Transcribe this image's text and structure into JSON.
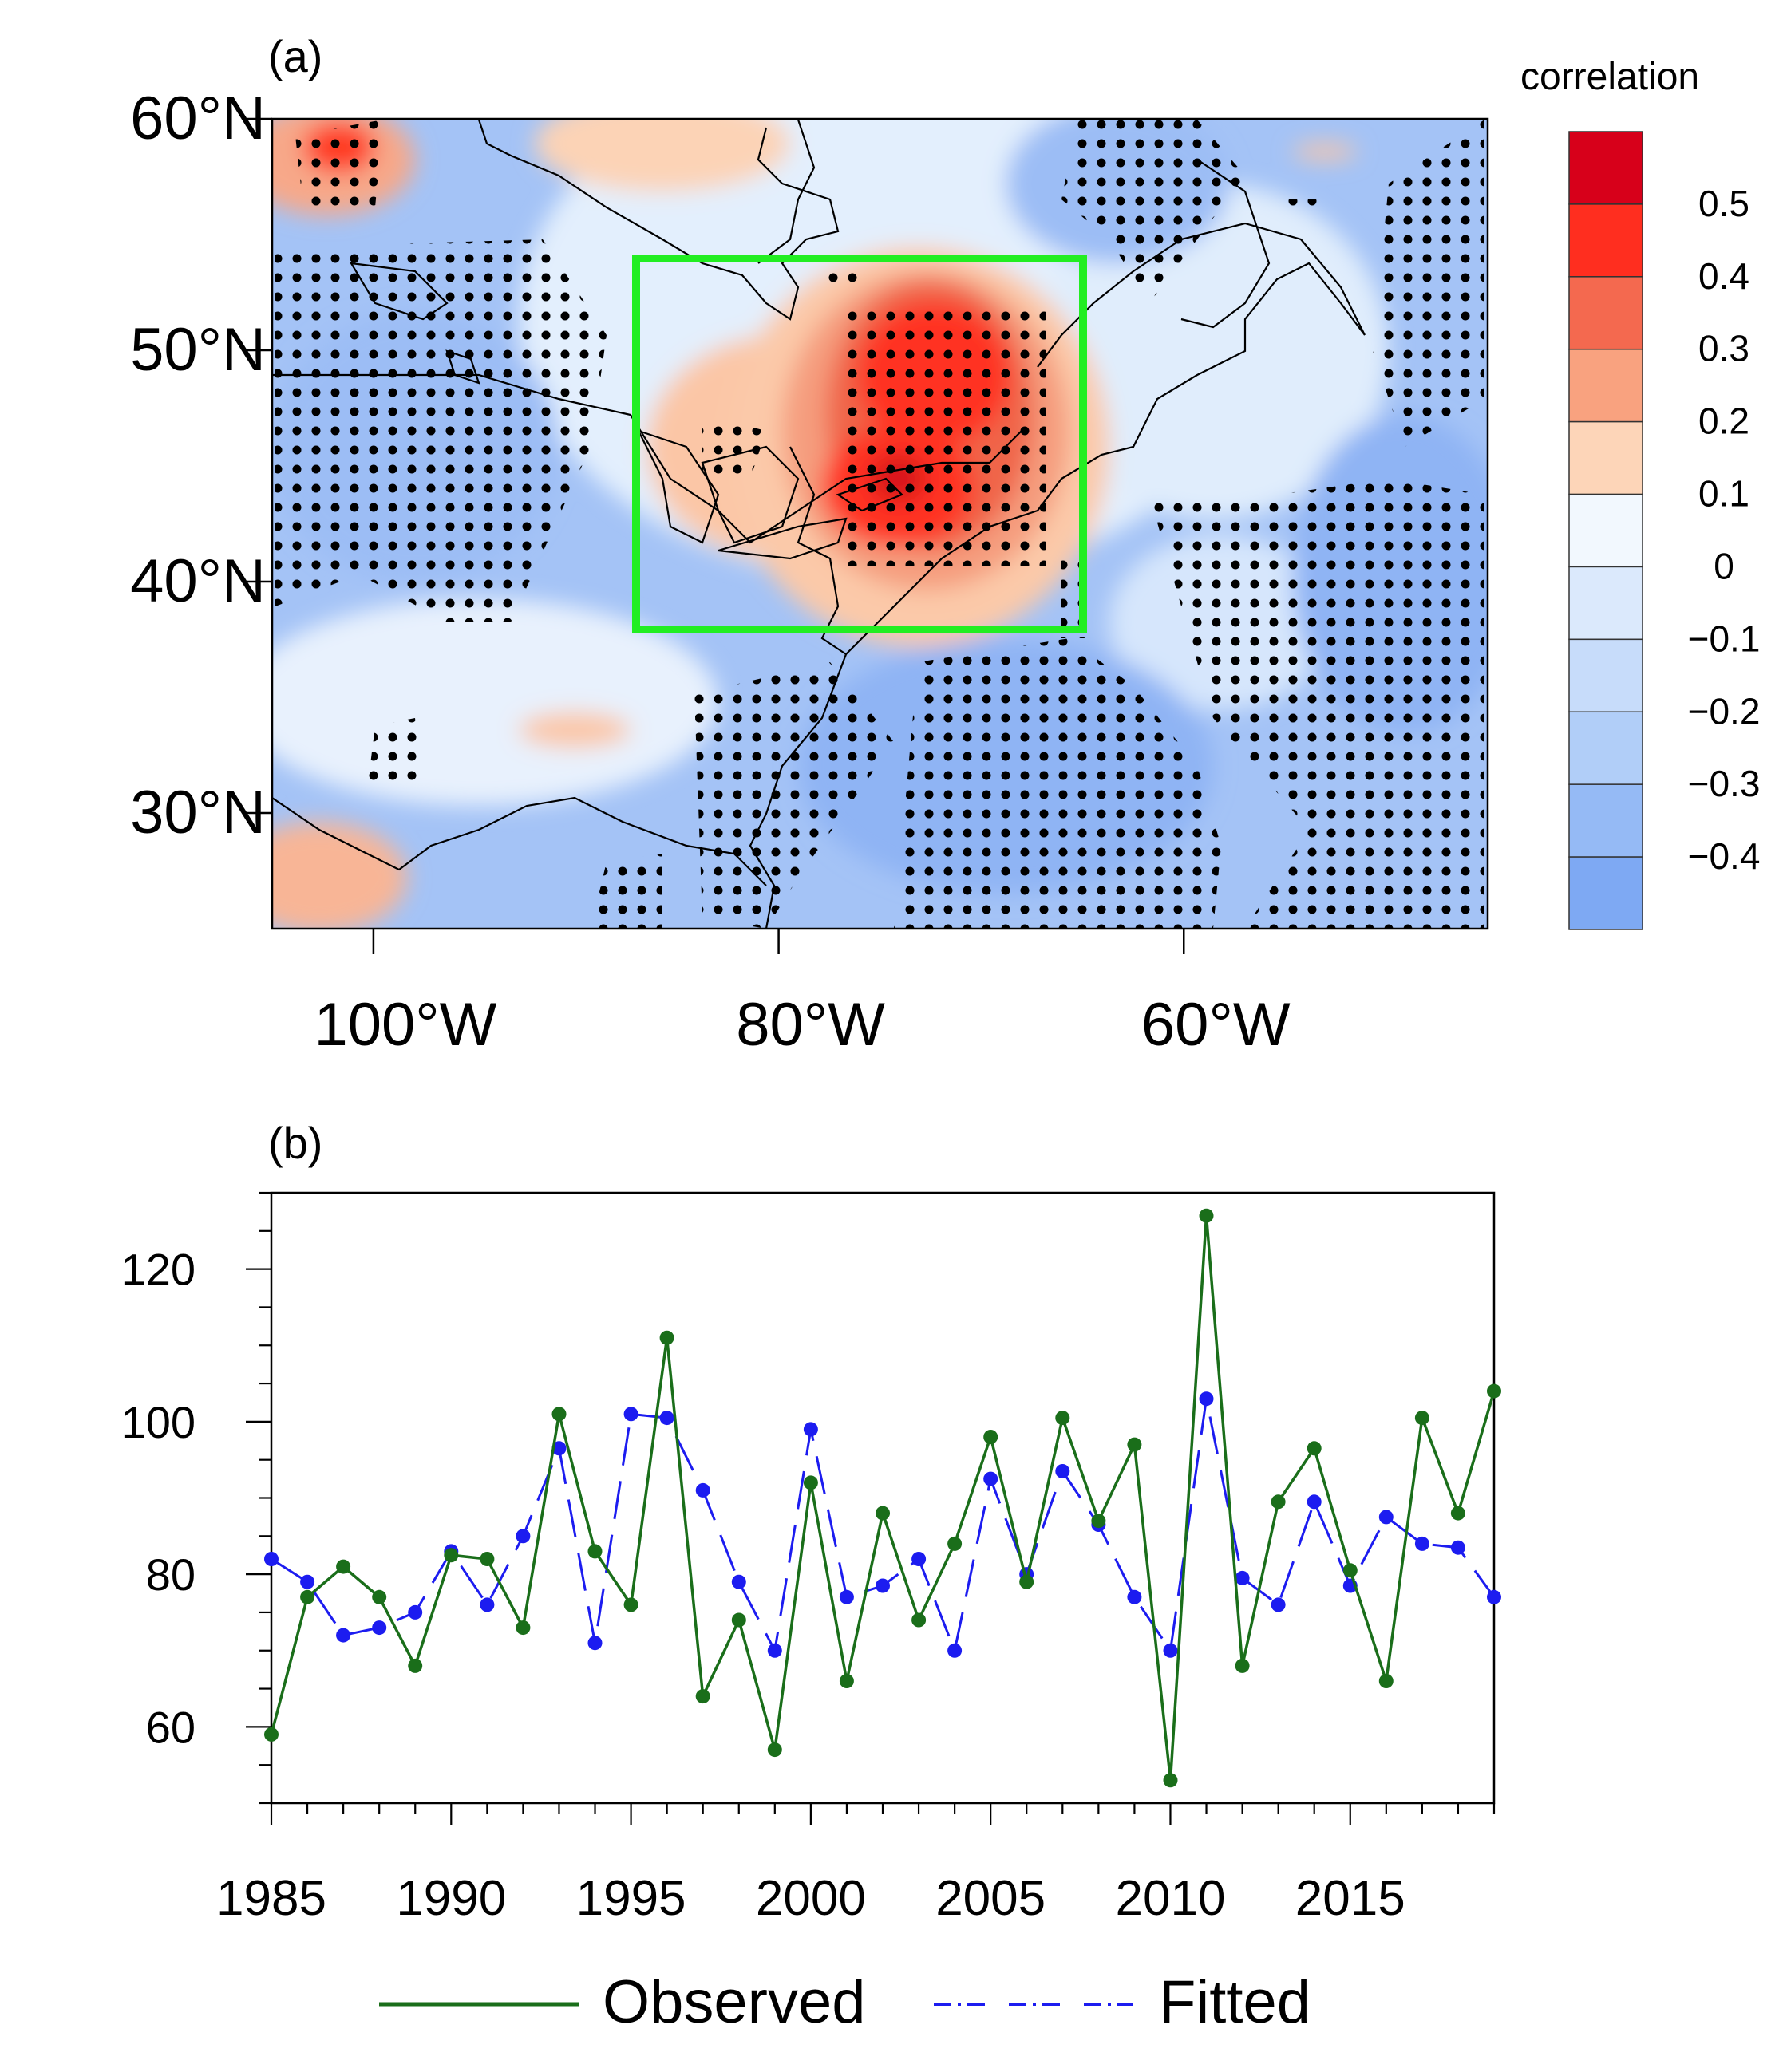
{
  "panels": {
    "a": {
      "label": "(a)"
    },
    "b": {
      "label": "(b)"
    }
  },
  "chart_data": [
    {
      "type": "heatmap",
      "panel": "(a)",
      "description_kind": "correlation map",
      "colorbar": {
        "title": "correlation",
        "levels": [
          0.5,
          0.4,
          0.3,
          0.2,
          0.1,
          0,
          -0.1,
          -0.2,
          -0.3,
          -0.4
        ],
        "labels": [
          "0.5",
          "0.4",
          "0.3",
          "0.2",
          "0.1",
          "0",
          "−0.1",
          "−0.2",
          "−0.3",
          "−0.4"
        ],
        "colors": [
          "#d7001a",
          "#ff2e1f",
          "#f4694f",
          "#f9a27f",
          "#fdd5b8",
          "#f2f8fe",
          "#dbe9fc",
          "#c7dcfa",
          "#b1cef8",
          "#95baf5",
          "#7ea9f3"
        ]
      },
      "x_axis": {
        "ticks": [
          -100,
          -80,
          -60
        ],
        "labels": [
          "100°W",
          "80°W",
          "60°W"
        ],
        "range": [
          -105,
          -45
        ]
      },
      "y_axis": {
        "ticks": [
          30,
          40,
          50,
          60
        ],
        "labels": [
          "30°N",
          "40°N",
          "50°N",
          "60°N"
        ],
        "range": [
          25,
          60
        ]
      },
      "box": {
        "lon": [
          -87,
          -65
        ],
        "lat": [
          38,
          54
        ],
        "color": "#22ee22"
      },
      "max_region": {
        "lon": -74,
        "lat": 47,
        "value": 0.5
      }
    },
    {
      "type": "line",
      "panel": "(b)",
      "x": [
        1985,
        1986,
        1987,
        1988,
        1989,
        1990,
        1991,
        1992,
        1993,
        1994,
        1995,
        1996,
        1997,
        1998,
        1999,
        2000,
        2001,
        2002,
        2003,
        2004,
        2005,
        2006,
        2007,
        2008,
        2009,
        2010,
        2011,
        2012,
        2013,
        2014,
        2015,
        2016,
        2017,
        2018,
        2019
      ],
      "xticks": [
        1985,
        1990,
        1995,
        2000,
        2005,
        2010,
        2015
      ],
      "xtick_labels": [
        "1985",
        "1990",
        "1995",
        "2000",
        "2005",
        "2010",
        "2015"
      ],
      "xlim": [
        1985,
        2019
      ],
      "yticks": [
        60,
        80,
        100,
        120
      ],
      "ytick_labels": [
        "60",
        "80",
        "100",
        "120"
      ],
      "ylim": [
        50,
        130
      ],
      "series": [
        {
          "name": "Observed",
          "color": "#1a6e1a",
          "style": "solid",
          "values": [
            59,
            77,
            81,
            77,
            68,
            82.5,
            82,
            73,
            101,
            83,
            76,
            111,
            64,
            74,
            57,
            92,
            66,
            88,
            74,
            84,
            98,
            79,
            100.5,
            87,
            97,
            53,
            127,
            68,
            89.5,
            96.5,
            80.5,
            66,
            100.5,
            88,
            104
          ]
        },
        {
          "name": "Fitted",
          "color": "#1c1cf0",
          "style": "dashed",
          "values": [
            82,
            79,
            72,
            73,
            75,
            83,
            76,
            85,
            96.5,
            71,
            101,
            100.5,
            91,
            79,
            70,
            99,
            77,
            78.5,
            82,
            70,
            92.5,
            80,
            93.5,
            86.5,
            77,
            70,
            103,
            79.5,
            76,
            89.5,
            78.5,
            87.5,
            84,
            83.5,
            77
          ]
        }
      ],
      "legend": {
        "entries": [
          "Observed",
          "Fitted"
        ],
        "location": "bottom"
      }
    }
  ]
}
